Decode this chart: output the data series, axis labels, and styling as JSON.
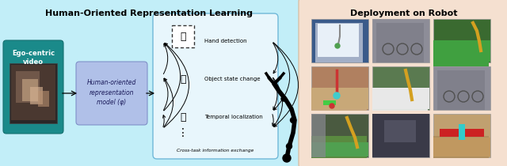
{
  "fig_width": 6.4,
  "fig_height": 2.1,
  "dpi": 100,
  "left_bg_color": "#c2eef8",
  "right_bg_color": "#f5e0d0",
  "left_title": "Human-Oriented Representation Learning",
  "right_title": "Deployment on Robot",
  "ego_box_color": "#1a8a8a",
  "ego_text": "Ego-centric\nvideo",
  "model_box_color": "#a8b8e8",
  "model_text": "Human-oriented\nrepresentation\nmodel (φ)",
  "task_labels": [
    "Hand detection",
    "Object state change",
    "Temporal localization"
  ],
  "cross_task_text": "Cross-task information exchange",
  "title_fontsize": 8.0,
  "label_fontsize": 5.0,
  "small_fontsize": 4.2
}
